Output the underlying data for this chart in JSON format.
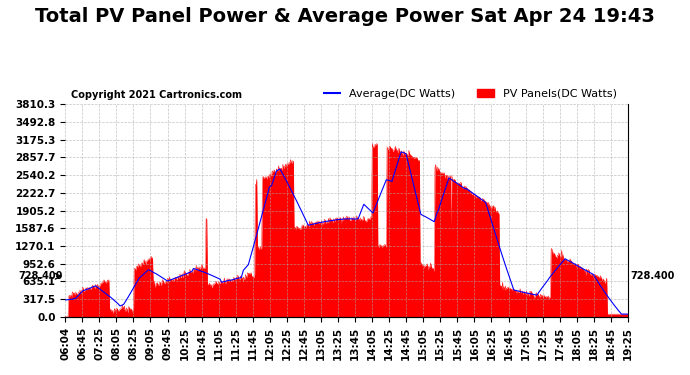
{
  "title": "Total PV Panel Power & Average Power Sat Apr 24 19:43",
  "copyright": "Copyright 2021 Cartronics.com",
  "legend_avg": "Average(DC Watts)",
  "legend_pv": "PV Panels(DC Watts)",
  "legend_avg_color": "blue",
  "legend_pv_color": "red",
  "y_ticks": [
    0.0,
    317.5,
    635.1,
    952.6,
    1270.1,
    1587.6,
    1905.2,
    2222.7,
    2540.2,
    2857.7,
    3175.3,
    3492.8,
    3810.3
  ],
  "y_annotation": "728.400",
  "x_label_start": "06:04",
  "x_label_end": "19:25",
  "ylim": [
    0.0,
    3810.3
  ],
  "background_color": "#ffffff",
  "fill_color": "#ff0000",
  "grid_color": "#aaaaaa",
  "title_fontsize": 14,
  "tick_fontsize": 7.5
}
